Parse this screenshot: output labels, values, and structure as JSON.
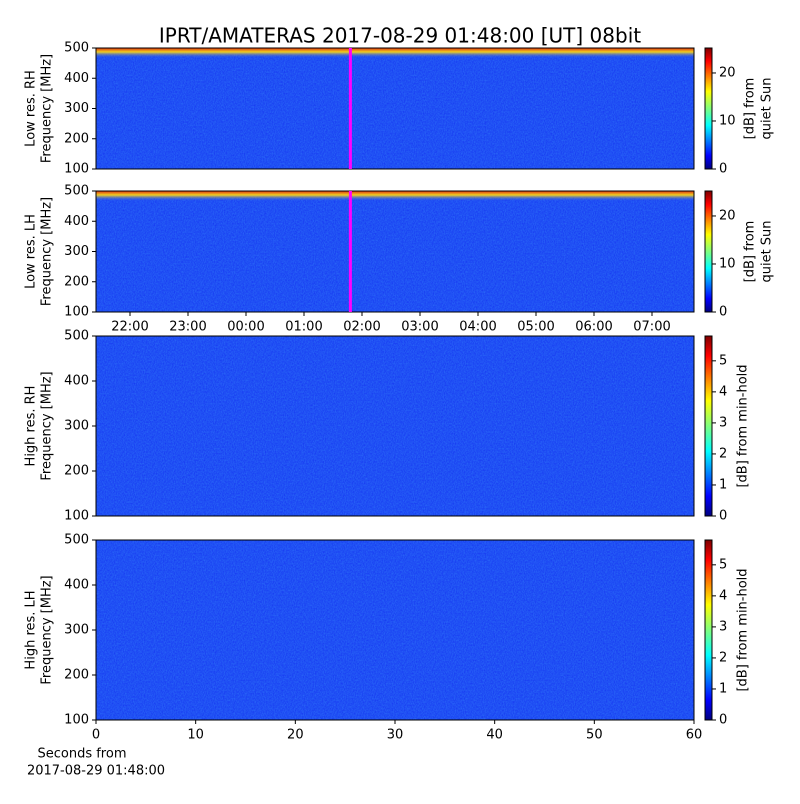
{
  "title": "IPRT/AMATERAS 2017-08-29 01:48:00 [UT]   08bit",
  "chart_data": [
    {
      "type": "heatmap",
      "ylabel": [
        "Low res. RH",
        "Frequency [MHz]"
      ],
      "xlim": [
        21.414,
        31.724
      ],
      "ylim": [
        100,
        500
      ],
      "yticks": [
        100,
        200,
        300,
        400,
        500
      ],
      "time_marker": 25.8,
      "time_marker_color": "#ff00ff",
      "colorbar": {
        "label": [
          "[dB] from",
          "quiet Sun"
        ],
        "lim": [
          0,
          25.2
        ],
        "ticks": [
          0,
          10,
          20
        ]
      }
    },
    {
      "type": "heatmap",
      "ylabel": [
        "Low res. LH",
        "Frequency [MHz]"
      ],
      "xlim": [
        21.414,
        31.724
      ],
      "ylim": [
        100,
        500
      ],
      "yticks": [
        100,
        200,
        300,
        400,
        500
      ],
      "xticks": [
        {
          "value": 22,
          "label": "22:00"
        },
        {
          "value": 23,
          "label": "23:00"
        },
        {
          "value": 24,
          "label": "00:00"
        },
        {
          "value": 25,
          "label": "01:00"
        },
        {
          "value": 26,
          "label": "02:00"
        },
        {
          "value": 27,
          "label": "03:00"
        },
        {
          "value": 28,
          "label": "04:00"
        },
        {
          "value": 29,
          "label": "05:00"
        },
        {
          "value": 30,
          "label": "06:00"
        },
        {
          "value": 31,
          "label": "07:00"
        }
      ],
      "time_marker": 25.8,
      "time_marker_color": "#ff00ff",
      "colorbar": {
        "label": [
          "[dB] from",
          "quiet Sun"
        ],
        "lim": [
          0,
          25.2
        ],
        "ticks": [
          0,
          10,
          20
        ]
      }
    },
    {
      "type": "heatmap",
      "ylabel": [
        "High res. RH",
        "Frequency [MHz]"
      ],
      "xlim": [
        0,
        60
      ],
      "ylim": [
        100,
        500
      ],
      "yticks": [
        100,
        200,
        300,
        400,
        500
      ],
      "colorbar": {
        "label": [
          "[dB] from min-hold"
        ],
        "lim": [
          0,
          5.8
        ],
        "ticks": [
          0,
          1,
          2,
          3,
          4,
          5
        ]
      }
    },
    {
      "type": "heatmap",
      "ylabel": [
        "High res. LH",
        "Frequency [MHz]"
      ],
      "xlim": [
        0,
        60
      ],
      "ylim": [
        100,
        500
      ],
      "yticks": [
        100,
        200,
        300,
        400,
        500
      ],
      "xticks": [
        0,
        10,
        20,
        30,
        40,
        50,
        60
      ],
      "xlabel": [
        "Seconds from",
        "2017-08-29 01:48:00"
      ],
      "colorbar": {
        "label": [
          "[dB] from min-hold"
        ],
        "lim": [
          0,
          5.8
        ],
        "ticks": [
          0,
          1,
          2,
          3,
          4,
          5
        ]
      }
    }
  ]
}
